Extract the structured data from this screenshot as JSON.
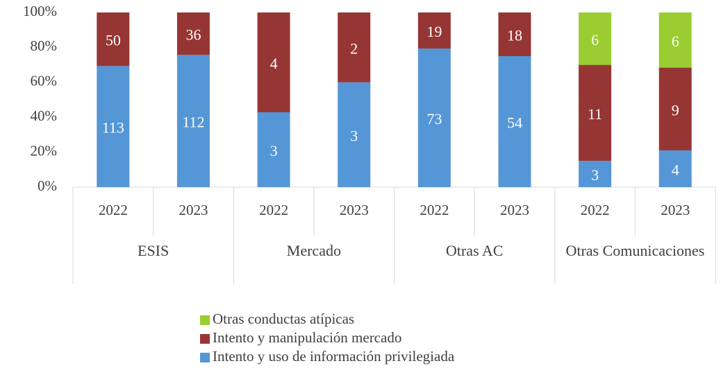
{
  "chart_data": {
    "type": "stacked_percent_bar",
    "categories": [
      "2022",
      "2023",
      "2022",
      "2023",
      "2022",
      "2023",
      "2022",
      "2023"
    ],
    "groups": [
      "ESIS",
      "Mercado",
      "Otras AC",
      "Otras Comunicaciones"
    ],
    "series": [
      {
        "name": "Intento y uso de información privilegiada",
        "color": "#5596d6",
        "values": [
          113,
          112,
          3,
          3,
          73,
          54,
          3,
          4
        ]
      },
      {
        "name": "Intento y manipulación mercado",
        "color": "#963634",
        "values": [
          50,
          36,
          4,
          2,
          19,
          18,
          11,
          9
        ]
      },
      {
        "name": "Otras conductas atípicas",
        "color": "#9acd32",
        "values": [
          null,
          null,
          null,
          null,
          null,
          null,
          6,
          6
        ]
      }
    ],
    "ylim": [
      0,
      100
    ],
    "yticks": [
      {
        "value": 0,
        "label": "0%"
      },
      {
        "value": 20,
        "label": "20%"
      },
      {
        "value": 40,
        "label": "40%"
      },
      {
        "value": 60,
        "label": "60%"
      },
      {
        "value": 80,
        "label": "80%"
      },
      {
        "value": 100,
        "label": "100%"
      }
    ],
    "legend": "bottom"
  }
}
